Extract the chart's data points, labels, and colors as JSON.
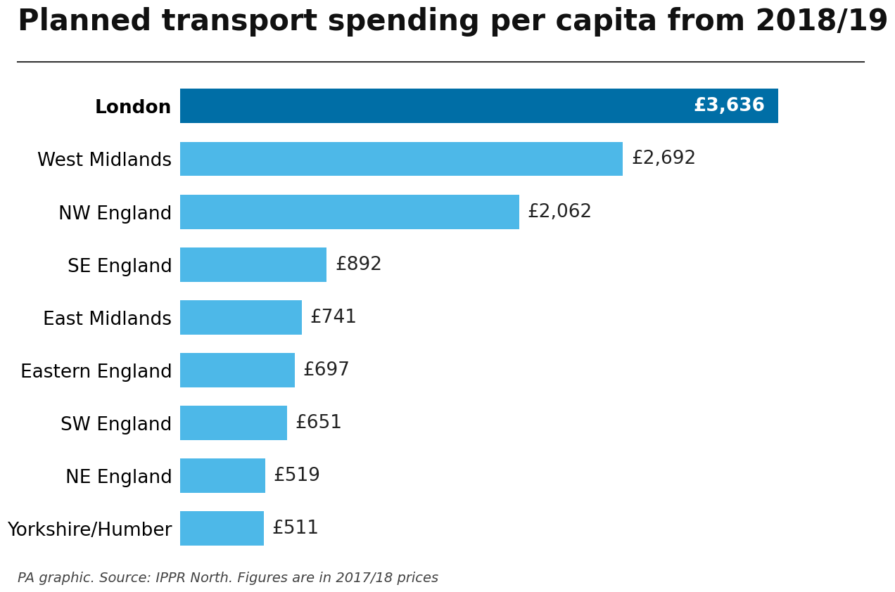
{
  "title": "Planned transport spending per capita from 2018/19",
  "categories": [
    "Yorkshire/Humber",
    "NE England",
    "SW England",
    "Eastern England",
    "East Midlands",
    "SE England",
    "NW England",
    "West Midlands",
    "London"
  ],
  "values": [
    511,
    519,
    651,
    697,
    741,
    892,
    2062,
    2692,
    3636
  ],
  "labels": [
    "£511",
    "£519",
    "£651",
    "£697",
    "£741",
    "£892",
    "£2,062",
    "£2,692",
    "£3,636"
  ],
  "bar_colors": [
    "#4db8e8",
    "#4db8e8",
    "#4db8e8",
    "#4db8e8",
    "#4db8e8",
    "#4db8e8",
    "#4db8e8",
    "#4db8e8",
    "#006ea6"
  ],
  "london_label_color": "#ffffff",
  "other_label_color": "#222222",
  "title_fontsize": 30,
  "label_fontsize": 19,
  "category_fontsize": 19,
  "footnote": "PA graphic. Source: IPPR North. Figures are in 2017/18 prices",
  "footnote_fontsize": 14,
  "background_color": "#ffffff",
  "xlim_max": 4050,
  "title_color": "#111111",
  "separator_color": "#333333"
}
